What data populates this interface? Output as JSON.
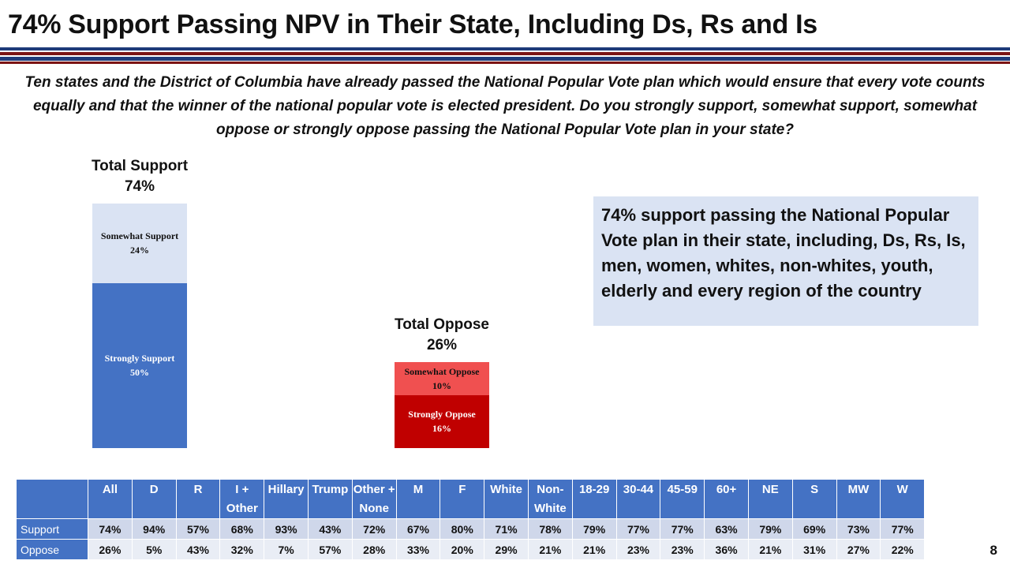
{
  "title": "74% Support Passing NPV in Their State, Including Ds, Rs and Is",
  "question": "Ten states and the District of Columbia have already passed the National Popular Vote plan which would ensure that every vote counts equally and that the winner of the national popular vote is elected president. Do you strongly support, somewhat support, somewhat oppose or strongly oppose passing the National Popular Vote plan in your state?",
  "chart_data": {
    "type": "bar",
    "stacked": true,
    "max": 100,
    "bars": [
      {
        "title": "Total Support",
        "total_label": "74%",
        "segments": [
          {
            "name": "Strongly Support",
            "label": "50%",
            "value": 50,
            "color": "#4472c4",
            "text_color": "#ffffff"
          },
          {
            "name": "Somewhat Support",
            "label": "24%",
            "value": 24,
            "color": "#dae3f3",
            "text_color": "#111111"
          }
        ]
      },
      {
        "title": "Total Oppose",
        "total_label": "26%",
        "segments": [
          {
            "name": "Strongly Oppose",
            "label": "16%",
            "value": 16,
            "color": "#c00000",
            "text_color": "#ffffff"
          },
          {
            "name": "Somewhat Oppose",
            "label": "10%",
            "value": 10,
            "color": "#f05050",
            "text_color": "#111111"
          }
        ]
      }
    ]
  },
  "callout": "74% support passing the National Popular Vote plan in their state, including, Ds, Rs, Is, men, women, whites, non-whites, youth, elderly and every region of the country",
  "table": {
    "columns": [
      "All",
      "D",
      "R",
      "I + Other",
      "Hillary",
      "Trump",
      "Other + None",
      "M",
      "F",
      "White",
      "Non-White",
      "18-29",
      "30-44",
      "45-59",
      "60+",
      "NE",
      "S",
      "MW",
      "W"
    ],
    "rows": [
      {
        "label": "Support",
        "values": [
          "74%",
          "94%",
          "57%",
          "68%",
          "93%",
          "43%",
          "72%",
          "67%",
          "80%",
          "71%",
          "78%",
          "79%",
          "77%",
          "77%",
          "63%",
          "79%",
          "69%",
          "73%",
          "77%"
        ]
      },
      {
        "label": "Oppose",
        "values": [
          "26%",
          "5%",
          "43%",
          "32%",
          "7%",
          "57%",
          "28%",
          "33%",
          "20%",
          "29%",
          "21%",
          "21%",
          "23%",
          "23%",
          "36%",
          "21%",
          "31%",
          "27%",
          "22%"
        ]
      }
    ]
  },
  "page_number": "8"
}
